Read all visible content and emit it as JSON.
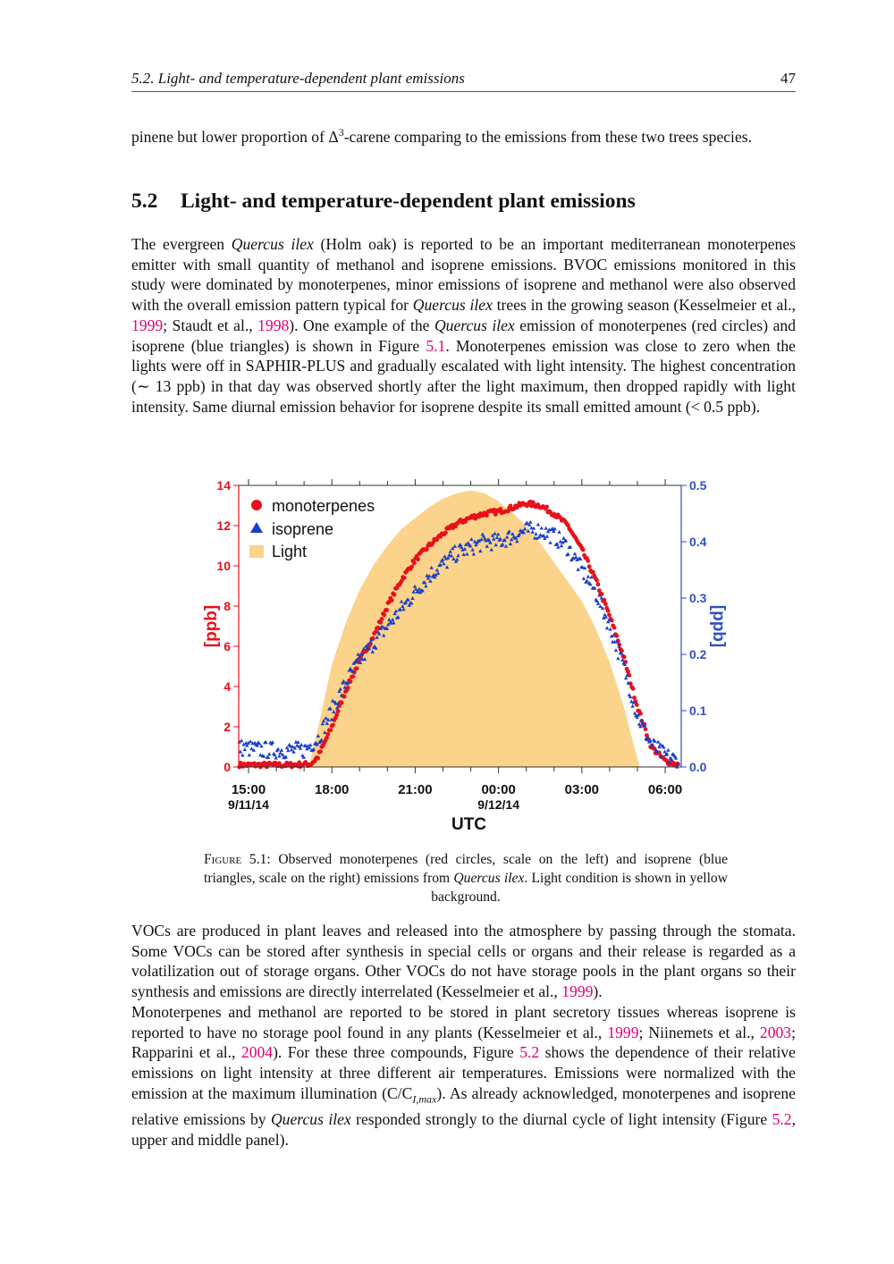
{
  "header": {
    "running_title": "5.2.  Light- and temperature-dependent plant emissions",
    "page_number": "47"
  },
  "paragraphs_top": [
    [
      {
        "t": "pinene but lower proportion of Δ"
      },
      {
        "t": "3",
        "s": "sup"
      },
      {
        "t": "-carene comparing to the emissions from these two trees species."
      }
    ]
  ],
  "section": {
    "number": "5.2",
    "title": "Light- and temperature-dependent plant emissions"
  },
  "paragraphs_mid": [
    [
      {
        "t": "The evergreen "
      },
      {
        "t": "Quercus ilex",
        "s": "it"
      },
      {
        "t": " (Holm oak) is reported to be an important mediterranean monoterpenes emitter with small quantity of methanol and isoprene emissions.  BVOC emissions monitored in this study were dominated by monoterpenes, minor emissions of isoprene and methanol were also observed with the overall emission pattern typical for "
      },
      {
        "t": "Quercus ilex",
        "s": "it"
      },
      {
        "t": " trees in the growing season (Kesselmeier et al., "
      },
      {
        "t": "1999",
        "s": "cite"
      },
      {
        "t": "; Staudt et al., "
      },
      {
        "t": "1998",
        "s": "cite"
      },
      {
        "t": ").  One example of the "
      },
      {
        "t": "Quercus ilex",
        "s": "it"
      },
      {
        "t": " emission of monoterpenes (red circles) and isoprene (blue triangles) is shown in Figure "
      },
      {
        "t": "5.1",
        "s": "cite"
      },
      {
        "t": ".  Monoterpenes emission was close to zero when the lights were off in SAPHIR-PLUS and gradually escalated with light intensity.  The highest concentration (∼ 13 ppb) in that day was observed shortly after the light maximum, then dropped rapidly with light intensity. Same diurnal emission behavior for isoprene despite its small emitted amount (< 0.5 ppb)."
      }
    ]
  ],
  "caption": [
    {
      "t": "Figure",
      "s": "sc"
    },
    {
      "t": " 5.1: Observed monoterpenes (red circles, scale on the left) and isoprene (blue triangles, scale on the right) emissions from "
    },
    {
      "t": "Quercus ilex",
      "s": "it"
    },
    {
      "t": ".  Light condition is shown in yellow background."
    }
  ],
  "paragraphs_bottom": [
    [
      {
        "t": "VOCs are produced in plant leaves and released into the atmosphere by passing through the stomata. Some VOCs can be stored after synthesis in special cells or organs and their release is regarded as a volatilization out of storage organs. Other VOCs do not have storage pools in the plant organs so their synthesis and emissions are directly interrelated (Kesselmeier et al., "
      },
      {
        "t": "1999",
        "s": "cite"
      },
      {
        "t": ")."
      }
    ],
    [
      {
        "t": "Monoterpenes and methanol are reported to be stored in plant secretory tissues whereas isoprene is reported to have no storage pool found in any plants (Kesselmeier et al., "
      },
      {
        "t": "1999",
        "s": "cite"
      },
      {
        "t": "; Niinemets et al., "
      },
      {
        "t": "2003",
        "s": "cite"
      },
      {
        "t": "; Rapparini et al., "
      },
      {
        "t": "2004",
        "s": "cite"
      },
      {
        "t": "). For these three compounds, Figure "
      },
      {
        "t": "5.2",
        "s": "cite"
      },
      {
        "t": " shows the dependence of their relative emissions on light intensity at three different air temperatures. Emissions were normalized with the emission at the maximum illumination (C/C"
      },
      {
        "t": "I,max",
        "s": "sub"
      },
      {
        "t": ").  As already acknowledged, monoterpenes and isoprene relative emissions by "
      },
      {
        "t": "Quercus ilex",
        "s": "it"
      },
      {
        "t": " responded strongly to the diurnal cycle of light intensity (Figure "
      },
      {
        "t": "5.2",
        "s": "cite"
      },
      {
        "t": ", upper and middle panel)."
      }
    ]
  ],
  "colors": {
    "monoterpenes": "#e8101a",
    "isoprene": "#1a3ec8",
    "light": "#fbd38a",
    "left_axis": "#e8101a",
    "right_axis": "#3050c0",
    "citation": "#e0007a"
  },
  "chart_data": {
    "type": "scatter",
    "xlabel": "UTC",
    "ylabel_left": "[ppb]",
    "ylabel_right": "[ppb]",
    "x_ticks": [
      {
        "time": "15:00",
        "date": "9/11/14"
      },
      {
        "time": "18:00",
        "date": ""
      },
      {
        "time": "21:00",
        "date": ""
      },
      {
        "time": "00:00",
        "date": "9/12/14"
      },
      {
        "time": "03:00",
        "date": ""
      },
      {
        "time": "06:00",
        "date": ""
      }
    ],
    "xlim": [
      "9/11/14 14:40",
      "9/12/14 06:35"
    ],
    "ylim_left": [
      0,
      14
    ],
    "ylim_right": [
      0,
      0.5
    ],
    "y_ticks_left": [
      "0",
      "2",
      "4",
      "6",
      "8",
      "10",
      "12",
      "14"
    ],
    "y_ticks_right": [
      "0.0",
      "0.1",
      "0.2",
      "0.3",
      "0.4",
      "0.5"
    ],
    "legend": {
      "placement": "top-left",
      "entries": [
        "monoterpenes",
        "isoprene",
        "Light"
      ]
    },
    "grid": false,
    "series": [
      {
        "name": "monoterpenes",
        "axis": "left",
        "marker": "circle",
        "x": [
          "14:40",
          "15:30",
          "16:30",
          "17:15",
          "17:30",
          "18:00",
          "18:30",
          "19:00",
          "19:30",
          "20:00",
          "20:30",
          "21:00",
          "21:30",
          "22:00",
          "22:30",
          "23:00",
          "23:30",
          "00:00",
          "00:30",
          "01:00",
          "01:30",
          "02:00",
          "02:30",
          "03:00",
          "03:30",
          "04:00",
          "04:30",
          "05:00",
          "05:30",
          "06:00",
          "06:30"
        ],
        "y": [
          0.1,
          0.1,
          0.1,
          0.15,
          0.5,
          2.0,
          3.8,
          5.3,
          6.5,
          8.0,
          9.3,
          10.3,
          11.0,
          11.6,
          12.1,
          12.4,
          12.6,
          12.7,
          12.9,
          13.1,
          13.0,
          12.6,
          12.0,
          10.8,
          9.3,
          7.5,
          5.5,
          3.0,
          1.0,
          0.3,
          0.1
        ]
      },
      {
        "name": "isoprene",
        "axis": "right",
        "marker": "triangle",
        "x": [
          "14:40",
          "15:30",
          "16:30",
          "17:00",
          "17:30",
          "18:00",
          "18:30",
          "19:00",
          "19:30",
          "20:00",
          "20:30",
          "21:00",
          "21:30",
          "22:00",
          "22:30",
          "23:00",
          "23:30",
          "00:00",
          "00:30",
          "01:00",
          "01:30",
          "02:00",
          "02:30",
          "03:00",
          "03:30",
          "04:00",
          "04:30",
          "05:00",
          "05:30",
          "06:00",
          "06:30"
        ],
        "y": [
          0.035,
          0.03,
          0.03,
          0.03,
          0.05,
          0.1,
          0.15,
          0.19,
          0.22,
          0.25,
          0.28,
          0.31,
          0.34,
          0.36,
          0.38,
          0.39,
          0.4,
          0.4,
          0.41,
          0.42,
          0.42,
          0.41,
          0.39,
          0.35,
          0.31,
          0.25,
          0.18,
          0.09,
          0.04,
          0.02,
          0.01
        ]
      },
      {
        "name": "Light",
        "axis": "none",
        "type": "area",
        "unit": "relative",
        "x": [
          "17:10",
          "17:30",
          "18:00",
          "18:30",
          "19:00",
          "19:30",
          "20:00",
          "20:30",
          "21:00",
          "21:30",
          "22:00",
          "22:30",
          "23:00",
          "23:30",
          "00:00",
          "00:30",
          "01:00",
          "01:30",
          "02:00",
          "02:30",
          "03:00",
          "03:30",
          "04:00",
          "04:30",
          "05:05"
        ],
        "y": [
          0,
          0.14,
          0.37,
          0.52,
          0.64,
          0.73,
          0.8,
          0.86,
          0.9,
          0.94,
          0.97,
          0.99,
          1.0,
          0.99,
          0.96,
          0.92,
          0.87,
          0.81,
          0.74,
          0.67,
          0.6,
          0.5,
          0.38,
          0.22,
          0
        ]
      }
    ]
  }
}
